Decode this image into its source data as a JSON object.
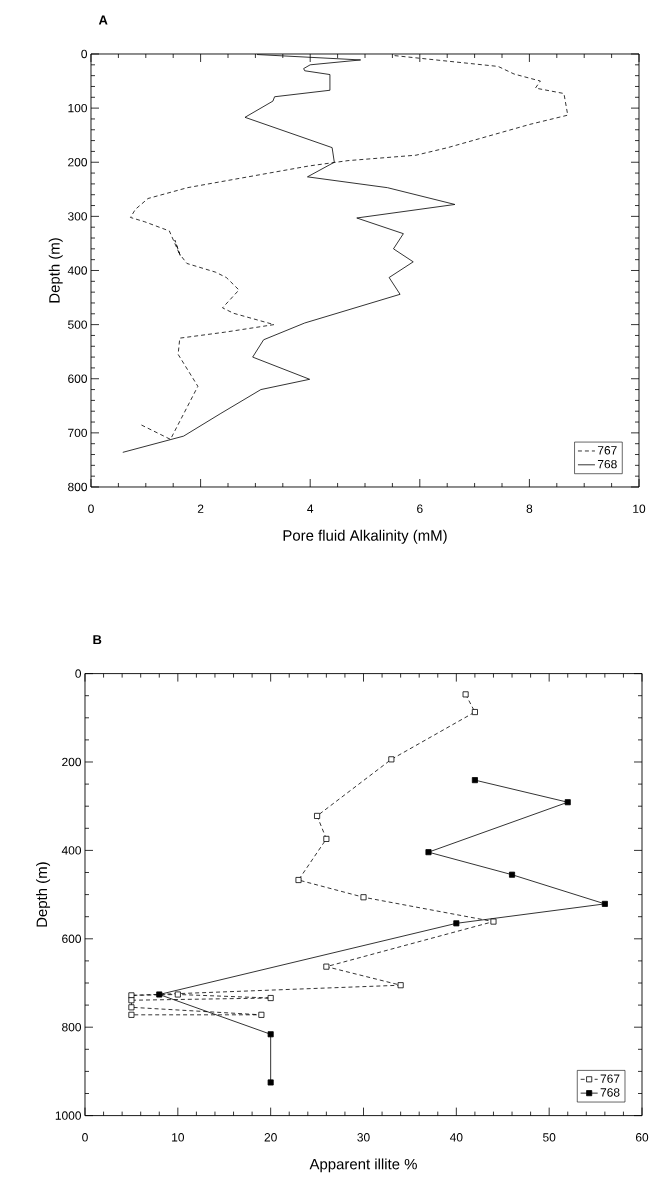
{
  "chart_data": [
    {
      "type": "line",
      "title": "A",
      "xlabel": "Pore fluid Alkalinity (mM)",
      "ylabel": "Depth (m)",
      "xlim": [
        0,
        10
      ],
      "xticks": [
        0,
        2,
        4,
        6,
        8,
        10
      ],
      "ylim": [
        800,
        0
      ],
      "yticks": [
        0,
        100,
        200,
        300,
        400,
        500,
        600,
        700,
        800
      ],
      "legend": "bottom right",
      "marker": "none",
      "series": [
        {
          "name": "767",
          "color": "#000000",
          "line_style": "dashed",
          "x": [
            5.54,
            7.43,
            7.72,
            8.2,
            8.11,
            8.63,
            8.7,
            8.01,
            6.51,
            5.93,
            4.69,
            3.97,
            1.76,
            1.04,
            0.81,
            0.72,
            0.98,
            1.43,
            1.63,
            1.53,
            1.62,
            1.75,
            2.27,
            2.47,
            2.7,
            2.4,
            2.6,
            3.34,
            2.44,
            1.62,
            1.59,
            1.95,
            1.45,
            0.91
          ],
          "values": [
            3,
            23,
            37,
            50,
            63,
            73,
            113,
            130,
            173,
            187,
            197,
            207,
            247,
            267,
            287,
            302,
            310,
            327,
            373,
            344,
            370,
            387,
            403,
            413,
            436,
            469,
            479,
            500,
            514,
            525,
            555,
            614,
            712,
            685
          ]
        },
        {
          "name": "768",
          "color": "#000000",
          "line_style": "solid",
          "x": [
            3.03,
            4.92,
            4.0,
            3.88,
            3.9,
            4.36,
            4.36,
            3.35,
            3.32,
            2.81,
            4.4,
            4.44,
            3.95,
            5.41,
            6.64,
            4.85,
            5.7,
            5.52,
            5.88,
            5.44,
            5.64,
            3.9,
            3.15,
            2.95,
            3.99,
            3.1,
            2.37,
            1.69,
            0.58
          ],
          "values": [
            1,
            11,
            20,
            27,
            31,
            38,
            67,
            79,
            87,
            117,
            173,
            200,
            227,
            247,
            278,
            303,
            332,
            360,
            384,
            413,
            444,
            497,
            528,
            560,
            601,
            620,
            664,
            706,
            736
          ]
        }
      ]
    },
    {
      "type": "line",
      "title": "B",
      "xlabel": "Apparent illite %",
      "ylabel": "Depth (m)",
      "xlim": [
        0,
        60
      ],
      "xticks": [
        0,
        10,
        20,
        30,
        40,
        50,
        60
      ],
      "ylim": [
        1000,
        0
      ],
      "yticks": [
        0,
        200,
        400,
        600,
        800,
        1000
      ],
      "legend": "bottom right",
      "marker": "square",
      "series": [
        {
          "name": "767",
          "color": "#000000",
          "line_style": "dashed",
          "x": [
            41,
            42,
            33,
            25,
            26,
            23,
            30,
            44,
            26,
            34,
            5,
            10,
            20,
            5,
            5,
            19,
            5
          ],
          "values": [
            47,
            87,
            194,
            322,
            374,
            467,
            506,
            561,
            663,
            705,
            728,
            726,
            734,
            739,
            755,
            772,
            772
          ]
        },
        {
          "name": "768",
          "color": "#000000",
          "line_style": "solid",
          "x": [
            42,
            52,
            37,
            46,
            56,
            40,
            8,
            20,
            20
          ],
          "values": [
            241,
            291,
            404,
            455,
            521,
            565,
            726,
            816,
            925
          ]
        }
      ]
    }
  ]
}
